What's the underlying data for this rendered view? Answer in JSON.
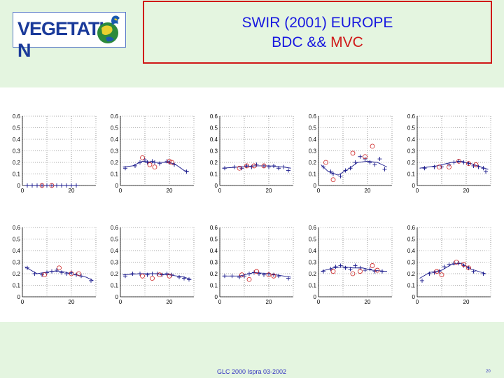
{
  "header": {
    "logo_text": "VEGETATI",
    "logo_suffix": "N",
    "title_line1": "SWIR (2001) EUROPE",
    "title_line2_a": "BDC && ",
    "title_line2_b": "MVC"
  },
  "footer": {
    "text": "GLC 2000 Ispra 03-2002",
    "page": "20"
  },
  "colors": {
    "cross": "#1a1a8c",
    "circle": "#cc2020",
    "line": "#1a1a8c",
    "title_blue": "#1818e0",
    "title_red": "#d01818"
  },
  "chart_data": {
    "type": "scatter",
    "grid": "dotted",
    "xlim": [
      0,
      30
    ],
    "ylim": [
      0,
      0.6
    ],
    "x_ticks": [
      "0",
      "20"
    ],
    "y_ticks": [
      "0",
      "0.1",
      "0.2",
      "0.3",
      "0.4",
      "0.5",
      "0.6"
    ],
    "panels": [
      {
        "crosses": [
          [
            2,
            0
          ],
          [
            4,
            0
          ],
          [
            6,
            0
          ],
          [
            8,
            0
          ],
          [
            10,
            0
          ],
          [
            12,
            0
          ],
          [
            14,
            0
          ],
          [
            16,
            0
          ],
          [
            18,
            0
          ],
          [
            20,
            0
          ],
          [
            22,
            0
          ]
        ],
        "circles": [
          [
            8,
            0
          ],
          [
            12,
            0
          ]
        ],
        "line": [
          [
            1,
            0
          ],
          [
            23,
            0
          ]
        ]
      },
      {
        "crosses": [
          [
            2,
            0.15
          ],
          [
            6,
            0.17
          ],
          [
            8,
            0.2
          ],
          [
            10,
            0.22
          ],
          [
            11,
            0.2
          ],
          [
            13,
            0.21
          ],
          [
            14,
            0.2
          ],
          [
            16,
            0.19
          ],
          [
            19,
            0.21
          ],
          [
            20,
            0.2
          ],
          [
            22,
            0.18
          ],
          [
            27,
            0.12
          ]
        ],
        "circles": [
          [
            9,
            0.24
          ],
          [
            12,
            0.18
          ],
          [
            14,
            0.16
          ],
          [
            20,
            0.21
          ],
          [
            21,
            0.2
          ]
        ],
        "line": [
          [
            1,
            0.16
          ],
          [
            5,
            0.17
          ],
          [
            9,
            0.21
          ],
          [
            14,
            0.2
          ],
          [
            18,
            0.2
          ],
          [
            22,
            0.19
          ],
          [
            26,
            0.13
          ],
          [
            28,
            0.12
          ]
        ]
      },
      {
        "crosses": [
          [
            2,
            0.15
          ],
          [
            6,
            0.16
          ],
          [
            9,
            0.15
          ],
          [
            11,
            0.17
          ],
          [
            13,
            0.16
          ],
          [
            15,
            0.18
          ],
          [
            18,
            0.17
          ],
          [
            20,
            0.16
          ],
          [
            22,
            0.17
          ],
          [
            24,
            0.15
          ],
          [
            26,
            0.16
          ],
          [
            28,
            0.13
          ]
        ],
        "circles": [
          [
            8,
            0.15
          ],
          [
            11,
            0.17
          ],
          [
            14,
            0.17
          ],
          [
            18,
            0.17
          ]
        ],
        "line": [
          [
            1,
            0.15
          ],
          [
            8,
            0.16
          ],
          [
            14,
            0.17
          ],
          [
            20,
            0.17
          ],
          [
            26,
            0.16
          ],
          [
            29,
            0.15
          ]
        ]
      },
      {
        "crosses": [
          [
            2,
            0.16
          ],
          [
            5,
            0.12
          ],
          [
            6,
            0.1
          ],
          [
            9,
            0.08
          ],
          [
            11,
            0.13
          ],
          [
            13,
            0.15
          ],
          [
            15,
            0.2
          ],
          [
            17,
            0.25
          ],
          [
            19,
            0.23
          ],
          [
            21,
            0.2
          ],
          [
            23,
            0.18
          ],
          [
            25,
            0.23
          ],
          [
            27,
            0.14
          ]
        ],
        "circles": [
          [
            3,
            0.2
          ],
          [
            6,
            0.05
          ],
          [
            14,
            0.28
          ],
          [
            19,
            0.25
          ],
          [
            22,
            0.34
          ]
        ],
        "line": [
          [
            1,
            0.18
          ],
          [
            4,
            0.12
          ],
          [
            8,
            0.09
          ],
          [
            12,
            0.14
          ],
          [
            16,
            0.2
          ],
          [
            20,
            0.21
          ],
          [
            24,
            0.2
          ],
          [
            28,
            0.16
          ]
        ]
      },
      {
        "crosses": [
          [
            3,
            0.15
          ],
          [
            7,
            0.16
          ],
          [
            10,
            0.16
          ],
          [
            13,
            0.18
          ],
          [
            15,
            0.2
          ],
          [
            17,
            0.21
          ],
          [
            19,
            0.2
          ],
          [
            21,
            0.19
          ],
          [
            23,
            0.17
          ],
          [
            25,
            0.16
          ],
          [
            27,
            0.15
          ],
          [
            28,
            0.12
          ]
        ],
        "circles": [
          [
            9,
            0.16
          ],
          [
            13,
            0.16
          ],
          [
            17,
            0.21
          ],
          [
            21,
            0.19
          ],
          [
            24,
            0.18
          ]
        ],
        "line": [
          [
            1,
            0.15
          ],
          [
            8,
            0.17
          ],
          [
            14,
            0.2
          ],
          [
            18,
            0.21
          ],
          [
            22,
            0.19
          ],
          [
            26,
            0.16
          ],
          [
            29,
            0.14
          ]
        ]
      },
      {
        "crosses": [
          [
            2,
            0.25
          ],
          [
            5,
            0.2
          ],
          [
            8,
            0.19
          ],
          [
            10,
            0.21
          ],
          [
            12,
            0.22
          ],
          [
            14,
            0.23
          ],
          [
            16,
            0.21
          ],
          [
            18,
            0.2
          ],
          [
            20,
            0.21
          ],
          [
            22,
            0.19
          ],
          [
            24,
            0.18
          ],
          [
            28,
            0.14
          ]
        ],
        "circles": [
          [
            9,
            0.19
          ],
          [
            15,
            0.25
          ],
          [
            20,
            0.2
          ],
          [
            23,
            0.2
          ]
        ],
        "line": [
          [
            1,
            0.26
          ],
          [
            6,
            0.2
          ],
          [
            12,
            0.22
          ],
          [
            16,
            0.22
          ],
          [
            22,
            0.19
          ],
          [
            26,
            0.17
          ],
          [
            29,
            0.14
          ]
        ]
      },
      {
        "crosses": [
          [
            2,
            0.18
          ],
          [
            5,
            0.2
          ],
          [
            8,
            0.2
          ],
          [
            11,
            0.19
          ],
          [
            13,
            0.2
          ],
          [
            15,
            0.2
          ],
          [
            17,
            0.19
          ],
          [
            19,
            0.2
          ],
          [
            21,
            0.19
          ],
          [
            24,
            0.17
          ],
          [
            26,
            0.16
          ],
          [
            28,
            0.15
          ]
        ],
        "circles": [
          [
            9,
            0.18
          ],
          [
            13,
            0.16
          ],
          [
            16,
            0.19
          ],
          [
            20,
            0.18
          ]
        ],
        "line": [
          [
            1,
            0.19
          ],
          [
            8,
            0.2
          ],
          [
            14,
            0.2
          ],
          [
            20,
            0.19
          ],
          [
            26,
            0.17
          ],
          [
            29,
            0.15
          ]
        ]
      },
      {
        "crosses": [
          [
            2,
            0.18
          ],
          [
            5,
            0.18
          ],
          [
            8,
            0.17
          ],
          [
            10,
            0.18
          ],
          [
            12,
            0.2
          ],
          [
            14,
            0.21
          ],
          [
            16,
            0.2
          ],
          [
            18,
            0.19
          ],
          [
            20,
            0.2
          ],
          [
            22,
            0.19
          ],
          [
            24,
            0.18
          ],
          [
            28,
            0.16
          ]
        ],
        "circles": [
          [
            9,
            0.19
          ],
          [
            12,
            0.15
          ],
          [
            15,
            0.22
          ],
          [
            20,
            0.19
          ],
          [
            22,
            0.18
          ]
        ],
        "line": [
          [
            1,
            0.18
          ],
          [
            8,
            0.18
          ],
          [
            14,
            0.21
          ],
          [
            20,
            0.2
          ],
          [
            26,
            0.18
          ],
          [
            29,
            0.17
          ]
        ]
      },
      {
        "crosses": [
          [
            2,
            0.22
          ],
          [
            5,
            0.24
          ],
          [
            7,
            0.26
          ],
          [
            9,
            0.27
          ],
          [
            11,
            0.25
          ],
          [
            13,
            0.24
          ],
          [
            15,
            0.27
          ],
          [
            17,
            0.25
          ],
          [
            19,
            0.23
          ],
          [
            21,
            0.24
          ],
          [
            23,
            0.22
          ],
          [
            26,
            0.22
          ]
        ],
        "circles": [
          [
            6,
            0.22
          ],
          [
            14,
            0.2
          ],
          [
            17,
            0.22
          ],
          [
            22,
            0.27
          ],
          [
            24,
            0.23
          ]
        ],
        "line": [
          [
            1,
            0.22
          ],
          [
            6,
            0.25
          ],
          [
            10,
            0.26
          ],
          [
            14,
            0.25
          ],
          [
            18,
            0.25
          ],
          [
            22,
            0.23
          ],
          [
            28,
            0.22
          ]
        ]
      },
      {
        "crosses": [
          [
            2,
            0.14
          ],
          [
            5,
            0.2
          ],
          [
            7,
            0.21
          ],
          [
            9,
            0.22
          ],
          [
            11,
            0.26
          ],
          [
            13,
            0.28
          ],
          [
            15,
            0.29
          ],
          [
            17,
            0.29
          ],
          [
            19,
            0.27
          ],
          [
            21,
            0.25
          ],
          [
            23,
            0.22
          ],
          [
            27,
            0.2
          ]
        ],
        "circles": [
          [
            8,
            0.22
          ],
          [
            10,
            0.19
          ],
          [
            16,
            0.3
          ],
          [
            19,
            0.28
          ],
          [
            21,
            0.25
          ]
        ],
        "line": [
          [
            1,
            0.16
          ],
          [
            5,
            0.21
          ],
          [
            10,
            0.23
          ],
          [
            14,
            0.28
          ],
          [
            18,
            0.29
          ],
          [
            22,
            0.24
          ],
          [
            28,
            0.2
          ]
        ]
      }
    ]
  }
}
